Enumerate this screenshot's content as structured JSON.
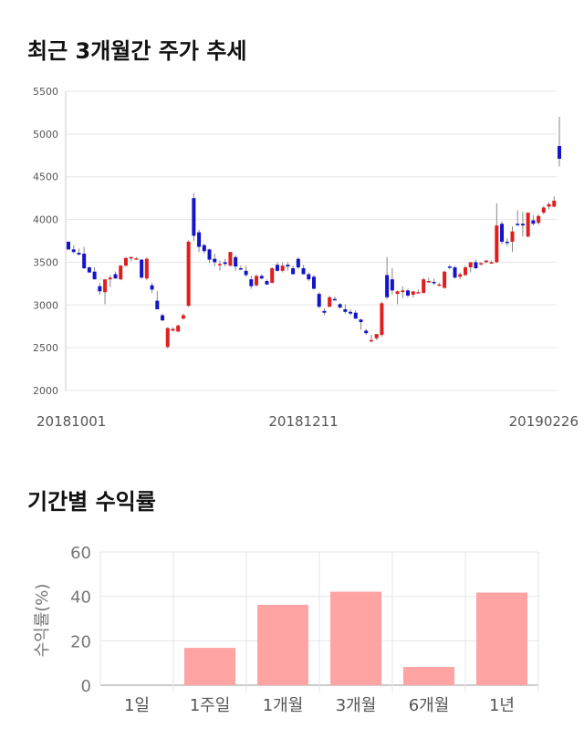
{
  "sections": {
    "candle_title": "최근 3개월간 주가 추세",
    "bar_title": "기간별 수익률"
  },
  "colors": {
    "up": "#e01e1e",
    "down": "#1414c8",
    "bar": "#ffa3a3",
    "grid": "#e6e6e6"
  },
  "chart_data": [
    {
      "type": "candlestick",
      "title": "최근 3개월간 주가 추세",
      "ylim": [
        2000,
        5500
      ],
      "yticks": [
        2000,
        2500,
        3000,
        3500,
        4000,
        4500,
        5000,
        5500
      ],
      "xtick_labels": [
        {
          "index": 0,
          "label": "20181001"
        },
        {
          "index": 45,
          "label": "20181211"
        },
        {
          "index": 91,
          "label": "20190226"
        }
      ],
      "grid": true,
      "candles": [
        {
          "o": 3740,
          "h": 3740,
          "l": 3640,
          "c": 3650
        },
        {
          "o": 3650,
          "h": 3700,
          "l": 3600,
          "c": 3620
        },
        {
          "o": 3610,
          "h": 3660,
          "l": 3580,
          "c": 3590
        },
        {
          "o": 3600,
          "h": 3680,
          "l": 3420,
          "c": 3430
        },
        {
          "o": 3440,
          "h": 3450,
          "l": 3380,
          "c": 3380
        },
        {
          "o": 3390,
          "h": 3440,
          "l": 3300,
          "c": 3300
        },
        {
          "o": 3220,
          "h": 3260,
          "l": 3120,
          "c": 3160
        },
        {
          "o": 3150,
          "h": 3280,
          "l": 3010,
          "c": 3300
        },
        {
          "o": 3300,
          "h": 3350,
          "l": 3210,
          "c": 3320
        },
        {
          "o": 3360,
          "h": 3390,
          "l": 3310,
          "c": 3310
        },
        {
          "o": 3300,
          "h": 3470,
          "l": 3290,
          "c": 3460
        },
        {
          "o": 3460,
          "h": 3560,
          "l": 3450,
          "c": 3550
        },
        {
          "o": 3550,
          "h": 3570,
          "l": 3510,
          "c": 3560
        },
        {
          "o": 3540,
          "h": 3560,
          "l": 3540,
          "c": 3545
        },
        {
          "o": 3530,
          "h": 3540,
          "l": 3310,
          "c": 3320
        },
        {
          "o": 3310,
          "h": 3560,
          "l": 3290,
          "c": 3540
        },
        {
          "o": 3230,
          "h": 3260,
          "l": 3140,
          "c": 3180
        },
        {
          "o": 3050,
          "h": 3160,
          "l": 2950,
          "c": 2950
        },
        {
          "o": 2880,
          "h": 2900,
          "l": 2810,
          "c": 2820
        },
        {
          "o": 2510,
          "h": 2740,
          "l": 2490,
          "c": 2730
        },
        {
          "o": 2700,
          "h": 2740,
          "l": 2690,
          "c": 2720
        },
        {
          "o": 2690,
          "h": 2770,
          "l": 2680,
          "c": 2760
        },
        {
          "o": 2840,
          "h": 2900,
          "l": 2830,
          "c": 2880
        },
        {
          "o": 2990,
          "h": 3760,
          "l": 2980,
          "c": 3740
        },
        {
          "o": 4250,
          "h": 4310,
          "l": 3750,
          "c": 3810
        },
        {
          "o": 3850,
          "h": 3880,
          "l": 3620,
          "c": 3680
        },
        {
          "o": 3700,
          "h": 3720,
          "l": 3600,
          "c": 3630
        },
        {
          "o": 3650,
          "h": 3660,
          "l": 3490,
          "c": 3530
        },
        {
          "o": 3540,
          "h": 3600,
          "l": 3450,
          "c": 3500
        },
        {
          "o": 3480,
          "h": 3520,
          "l": 3400,
          "c": 3480
        },
        {
          "o": 3500,
          "h": 3540,
          "l": 3450,
          "c": 3480
        },
        {
          "o": 3460,
          "h": 3620,
          "l": 3450,
          "c": 3620
        },
        {
          "o": 3560,
          "h": 3580,
          "l": 3400,
          "c": 3450
        },
        {
          "o": 3430,
          "h": 3460,
          "l": 3410,
          "c": 3420
        },
        {
          "o": 3400,
          "h": 3460,
          "l": 3330,
          "c": 3350
        },
        {
          "o": 3300,
          "h": 3340,
          "l": 3190,
          "c": 3220
        },
        {
          "o": 3230,
          "h": 3360,
          "l": 3210,
          "c": 3340
        },
        {
          "o": 3340,
          "h": 3360,
          "l": 3300,
          "c": 3310
        },
        {
          "o": 3280,
          "h": 3300,
          "l": 3240,
          "c": 3240
        },
        {
          "o": 3260,
          "h": 3440,
          "l": 3250,
          "c": 3430
        },
        {
          "o": 3470,
          "h": 3500,
          "l": 3390,
          "c": 3400
        },
        {
          "o": 3400,
          "h": 3500,
          "l": 3380,
          "c": 3460
        },
        {
          "o": 3470,
          "h": 3500,
          "l": 3400,
          "c": 3450
        },
        {
          "o": 3430,
          "h": 3460,
          "l": 3360,
          "c": 3360
        },
        {
          "o": 3540,
          "h": 3560,
          "l": 3420,
          "c": 3440
        },
        {
          "o": 3430,
          "h": 3470,
          "l": 3360,
          "c": 3360
        },
        {
          "o": 3360,
          "h": 3380,
          "l": 3280,
          "c": 3300
        },
        {
          "o": 3330,
          "h": 3350,
          "l": 3180,
          "c": 3190
        },
        {
          "o": 3130,
          "h": 3150,
          "l": 2960,
          "c": 2980
        },
        {
          "o": 2930,
          "h": 2960,
          "l": 2880,
          "c": 2910
        },
        {
          "o": 2980,
          "h": 3110,
          "l": 2970,
          "c": 3090
        },
        {
          "o": 3070,
          "h": 3100,
          "l": 3050,
          "c": 3060
        },
        {
          "o": 3010,
          "h": 3020,
          "l": 2960,
          "c": 2970
        },
        {
          "o": 2950,
          "h": 3010,
          "l": 2900,
          "c": 2920
        },
        {
          "o": 2920,
          "h": 2950,
          "l": 2880,
          "c": 2900
        },
        {
          "o": 2910,
          "h": 2940,
          "l": 2840,
          "c": 2840
        },
        {
          "o": 2830,
          "h": 2840,
          "l": 2710,
          "c": 2800
        },
        {
          "o": 2700,
          "h": 2720,
          "l": 2650,
          "c": 2670
        },
        {
          "o": 2590,
          "h": 2650,
          "l": 2560,
          "c": 2590
        },
        {
          "o": 2610,
          "h": 2660,
          "l": 2590,
          "c": 2660
        },
        {
          "o": 2650,
          "h": 3040,
          "l": 2630,
          "c": 3020
        },
        {
          "o": 3350,
          "h": 3560,
          "l": 3070,
          "c": 3090
        },
        {
          "o": 3300,
          "h": 3430,
          "l": 3120,
          "c": 3170
        },
        {
          "o": 3130,
          "h": 3170,
          "l": 3010,
          "c": 3160
        },
        {
          "o": 3150,
          "h": 3220,
          "l": 3080,
          "c": 3170
        },
        {
          "o": 3170,
          "h": 3190,
          "l": 3090,
          "c": 3110
        },
        {
          "o": 3120,
          "h": 3160,
          "l": 3090,
          "c": 3160
        },
        {
          "o": 3150,
          "h": 3180,
          "l": 3140,
          "c": 3150
        },
        {
          "o": 3140,
          "h": 3320,
          "l": 3140,
          "c": 3300
        },
        {
          "o": 3280,
          "h": 3320,
          "l": 3260,
          "c": 3280
        },
        {
          "o": 3270,
          "h": 3310,
          "l": 3230,
          "c": 3260
        },
        {
          "o": 3230,
          "h": 3260,
          "l": 3220,
          "c": 3240
        },
        {
          "o": 3200,
          "h": 3400,
          "l": 3190,
          "c": 3390
        },
        {
          "o": 3450,
          "h": 3470,
          "l": 3420,
          "c": 3440
        },
        {
          "o": 3440,
          "h": 3460,
          "l": 3310,
          "c": 3320
        },
        {
          "o": 3330,
          "h": 3380,
          "l": 3300,
          "c": 3360
        },
        {
          "o": 3350,
          "h": 3460,
          "l": 3340,
          "c": 3440
        },
        {
          "o": 3440,
          "h": 3480,
          "l": 3380,
          "c": 3500
        },
        {
          "o": 3500,
          "h": 3530,
          "l": 3420,
          "c": 3430
        },
        {
          "o": 3480,
          "h": 3500,
          "l": 3460,
          "c": 3490
        },
        {
          "o": 3500,
          "h": 3530,
          "l": 3490,
          "c": 3520
        },
        {
          "o": 3500,
          "h": 3520,
          "l": 3490,
          "c": 3500
        },
        {
          "o": 3500,
          "h": 4190,
          "l": 3490,
          "c": 3930
        },
        {
          "o": 3950,
          "h": 3980,
          "l": 3710,
          "c": 3740
        },
        {
          "o": 3740,
          "h": 3780,
          "l": 3690,
          "c": 3730
        },
        {
          "o": 3740,
          "h": 3920,
          "l": 3620,
          "c": 3860
        },
        {
          "o": 3950,
          "h": 4110,
          "l": 3920,
          "c": 3940
        },
        {
          "o": 3950,
          "h": 4090,
          "l": 3800,
          "c": 3930
        },
        {
          "o": 3800,
          "h": 4070,
          "l": 3790,
          "c": 4080
        },
        {
          "o": 3990,
          "h": 4050,
          "l": 3930,
          "c": 3950
        },
        {
          "o": 3960,
          "h": 4060,
          "l": 3940,
          "c": 4040
        },
        {
          "o": 4080,
          "h": 4160,
          "l": 4060,
          "c": 4140
        },
        {
          "o": 4150,
          "h": 4200,
          "l": 4120,
          "c": 4180
        },
        {
          "o": 4150,
          "h": 4270,
          "l": 4140,
          "c": 4220
        },
        {
          "o": 4860,
          "h": 5200,
          "l": 4620,
          "c": 4710
        }
      ]
    },
    {
      "type": "bar",
      "title": "기간별 수익률",
      "categories": [
        "1일",
        "1주일",
        "1개월",
        "3개월",
        "6개월",
        "1년"
      ],
      "values": [
        0,
        16.8,
        36.2,
        42.1,
        8.2,
        41.7
      ],
      "ylabel": "수익률(%)",
      "ylim": [
        0,
        60
      ],
      "yticks": [
        0,
        20,
        40,
        60
      ],
      "grid": true
    }
  ]
}
